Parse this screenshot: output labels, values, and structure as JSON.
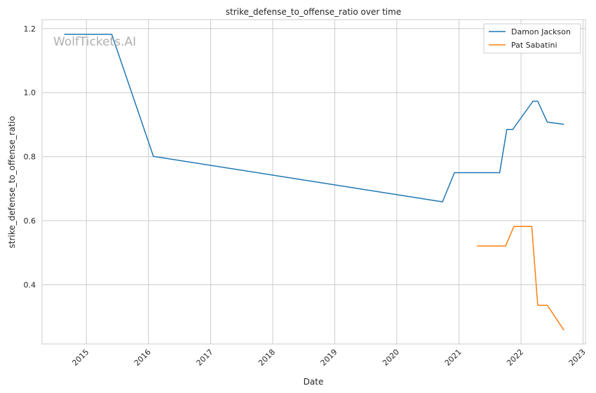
{
  "chart_data": {
    "type": "line",
    "title": "strike_defense_to_offense_ratio over time",
    "xlabel": "Date",
    "ylabel": "strike_defense_to_offense_ratio",
    "watermark": "WolfTickets.AI",
    "x_ticks": [
      "2015",
      "2016",
      "2017",
      "2018",
      "2019",
      "2020",
      "2021",
      "2022",
      "2023"
    ],
    "y_ticks": [
      "0.4",
      "0.6",
      "0.8",
      "1.0",
      "1.2"
    ],
    "xlim": [
      "2014-04-15",
      "2023-01-15"
    ],
    "ylim": [
      0.215,
      1.228
    ],
    "grid": true,
    "legend_position": "top-right",
    "series": [
      {
        "name": "Damon Jackson",
        "color": "#1f77b4",
        "points": [
          [
            "2014-08-23",
            1.182
          ],
          [
            "2015-05-30",
            1.182
          ],
          [
            "2016-01-30",
            0.801
          ],
          [
            "2020-09-26",
            0.659
          ],
          [
            "2020-12-05",
            0.75
          ],
          [
            "2021-08-28",
            0.75
          ],
          [
            "2021-10-09",
            0.885
          ],
          [
            "2021-11-13",
            0.885
          ],
          [
            "2022-03-12",
            0.973
          ],
          [
            "2022-04-09",
            0.973
          ],
          [
            "2022-06-04",
            0.908
          ],
          [
            "2022-09-10",
            0.901
          ]
        ]
      },
      {
        "name": "Pat Sabatini",
        "color": "#ff7f0e",
        "points": [
          [
            "2021-04-17",
            0.521
          ],
          [
            "2021-10-02",
            0.521
          ],
          [
            "2021-11-20",
            0.582
          ],
          [
            "2022-03-05",
            0.582
          ],
          [
            "2022-04-09",
            0.336
          ],
          [
            "2022-06-04",
            0.336
          ],
          [
            "2022-09-10",
            0.258
          ]
        ]
      }
    ]
  }
}
